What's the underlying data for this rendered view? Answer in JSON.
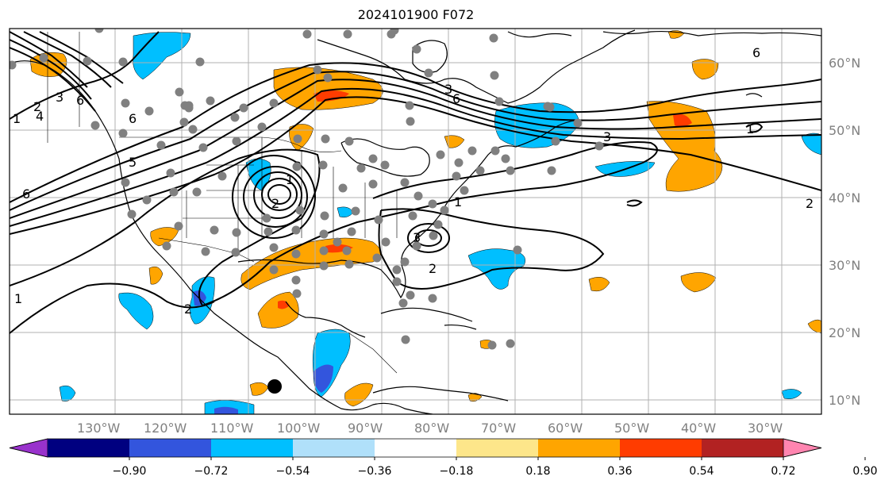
{
  "title": "2024101900 F072",
  "lat_labels": [
    "60°N",
    "50°N",
    "40°N",
    "30°N",
    "20°N",
    "10°N"
  ],
  "lon_labels": [
    "130°W",
    "120°W",
    "110°W",
    "100°W",
    "90°W",
    "80°W",
    "70°W",
    "60°W",
    "50°W",
    "40°W",
    "30°W"
  ],
  "colorbar": {
    "colors": [
      "#9932cc",
      "#000080",
      "#3355dd",
      "#00bfff",
      "#b0e0fa",
      "#ffffff",
      "#fde68a",
      "#ffa500",
      "#ff3c00",
      "#b22222",
      "#ff85b0"
    ],
    "tick_labels": [
      "−0.90",
      "−0.72",
      "−0.54",
      "−0.36",
      "−0.18",
      "0.18",
      "0.36",
      "0.54",
      "0.72",
      "0.90"
    ]
  },
  "contour_labels": [
    "6",
    "6",
    "6",
    "1",
    "2",
    "3",
    "4",
    "1",
    "2",
    "3",
    "6",
    "3",
    "1",
    "2",
    "1",
    "1",
    "2",
    "3",
    "3",
    "5",
    "2",
    "6"
  ],
  "marker_colors": {
    "stations": "#808080",
    "highlight": "#000000"
  }
}
